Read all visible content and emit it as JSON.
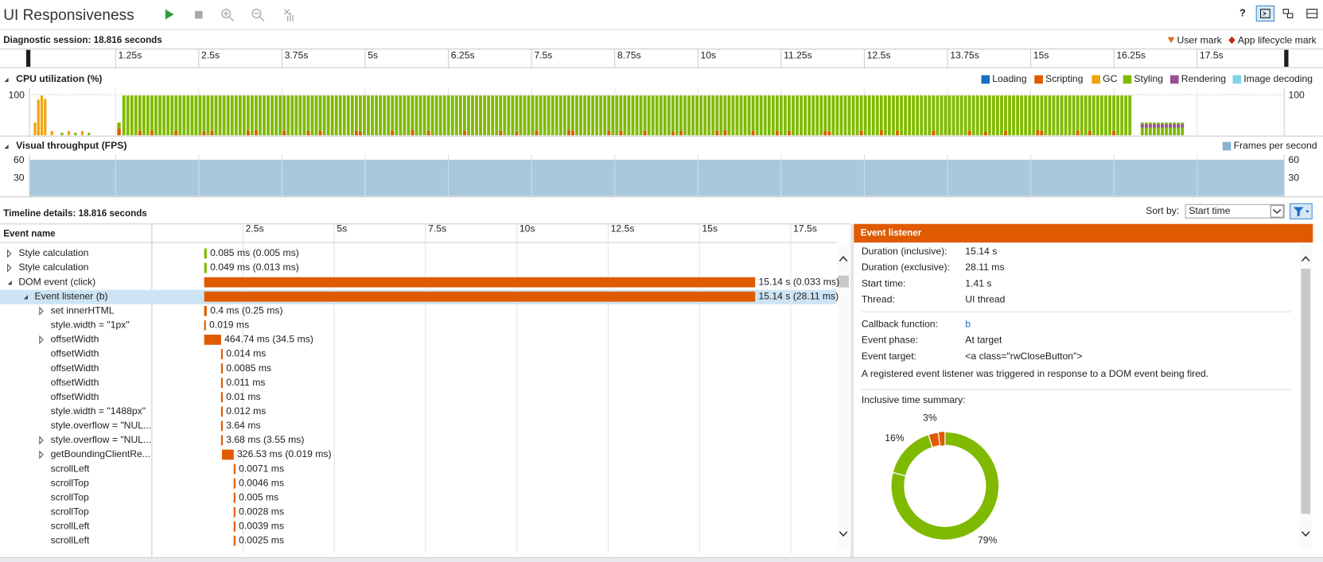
{
  "header": {
    "title": "UI Responsiveness"
  },
  "session": {
    "label": "Diagnostic session: 18.816 seconds",
    "marks": [
      {
        "name": "User mark",
        "color": "#e8661a"
      },
      {
        "name": "App lifecycle mark",
        "color": "#c4281c"
      }
    ],
    "ruler": [
      "1.25s",
      "2.5s",
      "3.75s",
      "5s",
      "6.25s",
      "7.5s",
      "8.75s",
      "10s",
      "11.25s",
      "12.5s",
      "13.75s",
      "15s",
      "16.25s",
      "17.5s"
    ]
  },
  "cpu": {
    "title": "CPU utilization (%)",
    "axis": "100",
    "legend": [
      {
        "name": "Loading",
        "color": "#1a6fc4"
      },
      {
        "name": "Scripting",
        "color": "#e05a00"
      },
      {
        "name": "GC",
        "color": "#f0a30a"
      },
      {
        "name": "Styling",
        "color": "#7fba00"
      },
      {
        "name": "Rendering",
        "color": "#9b4f96"
      },
      {
        "name": "Image decoding",
        "color": "#7fd3ea"
      }
    ]
  },
  "fps": {
    "title": "Visual throughput (FPS)",
    "legend": {
      "name": "Frames per second",
      "color": "#86b4cf"
    },
    "axis": [
      "60",
      "30"
    ]
  },
  "details": {
    "title": "Timeline details: 18.816 seconds",
    "sort_label": "Sort by:",
    "sort_value": "Start time",
    "column": "Event name",
    "ruler": [
      "2.5s",
      "5s",
      "7.5s",
      "10s",
      "12.5s",
      "15s",
      "17.5s"
    ],
    "rows": [
      {
        "name": "Style calculation",
        "time": "0.085 ms (0.005 ms)"
      },
      {
        "name": "Style calculation",
        "time": "0.049 ms (0.013 ms)"
      },
      {
        "name": "DOM event (click)",
        "time": "15.14 s (0.033 ms)"
      },
      {
        "name": "Event listener (b)",
        "time": "15.14 s (28.11 ms)"
      },
      {
        "name": "set innerHTML",
        "time": "0.4 ms (0.25 ms)"
      },
      {
        "name": "style.width = \"1px\"",
        "time": "0.019 ms"
      },
      {
        "name": "offsetWidth",
        "time": "464.74 ms (34.5 ms)"
      },
      {
        "name": "offsetWidth",
        "time": "0.014 ms"
      },
      {
        "name": "offsetWidth",
        "time": "0.0085 ms"
      },
      {
        "name": "offsetWidth",
        "time": "0.011 ms"
      },
      {
        "name": "offsetWidth",
        "time": "0.01 ms"
      },
      {
        "name": "style.width = \"1488px\"",
        "time": "0.012 ms"
      },
      {
        "name": "style.overflow = \"NUL...",
        "time": "3.64 ms"
      },
      {
        "name": "style.overflow = \"NUL...",
        "time": "3.68 ms (3.55 ms)"
      },
      {
        "name": "getBoundingClientRe...",
        "time": "326.53 ms (0.019 ms)"
      },
      {
        "name": "scrollLeft",
        "time": "0.0071 ms"
      },
      {
        "name": "scrollTop",
        "time": "0.0046 ms"
      },
      {
        "name": "scrollTop",
        "time": "0.005 ms"
      },
      {
        "name": "scrollTop",
        "time": "0.0028 ms"
      },
      {
        "name": "scrollLeft",
        "time": "0.0039 ms"
      },
      {
        "name": "scrollLeft",
        "time": "0.0025 ms"
      }
    ]
  },
  "panel": {
    "title": "Event listener",
    "fields": [
      {
        "key": "Duration (inclusive):",
        "value": "15.14 s"
      },
      {
        "key": "Duration (exclusive):",
        "value": "28.11 ms"
      },
      {
        "key": "Start time:",
        "value": "1.41 s"
      },
      {
        "key": "Thread:",
        "value": "UI thread"
      }
    ],
    "details": [
      {
        "key": "Callback function:",
        "value": "b"
      },
      {
        "key": "Event phase:",
        "value": "At target"
      },
      {
        "key": "Event target:",
        "value": "<a class=\"rwCloseButton\">"
      }
    ],
    "description": "A registered event listener was triggered in response to a DOM event being fired.",
    "summary_title": "Inclusive time summary:",
    "summary": [
      {
        "value": 79,
        "label": "79%",
        "color": "#7fba00"
      },
      {
        "value": 16,
        "label": "16%",
        "color": "#7fba00"
      },
      {
        "value": 3,
        "label": "3%",
        "color": "#e05a00"
      }
    ]
  }
}
